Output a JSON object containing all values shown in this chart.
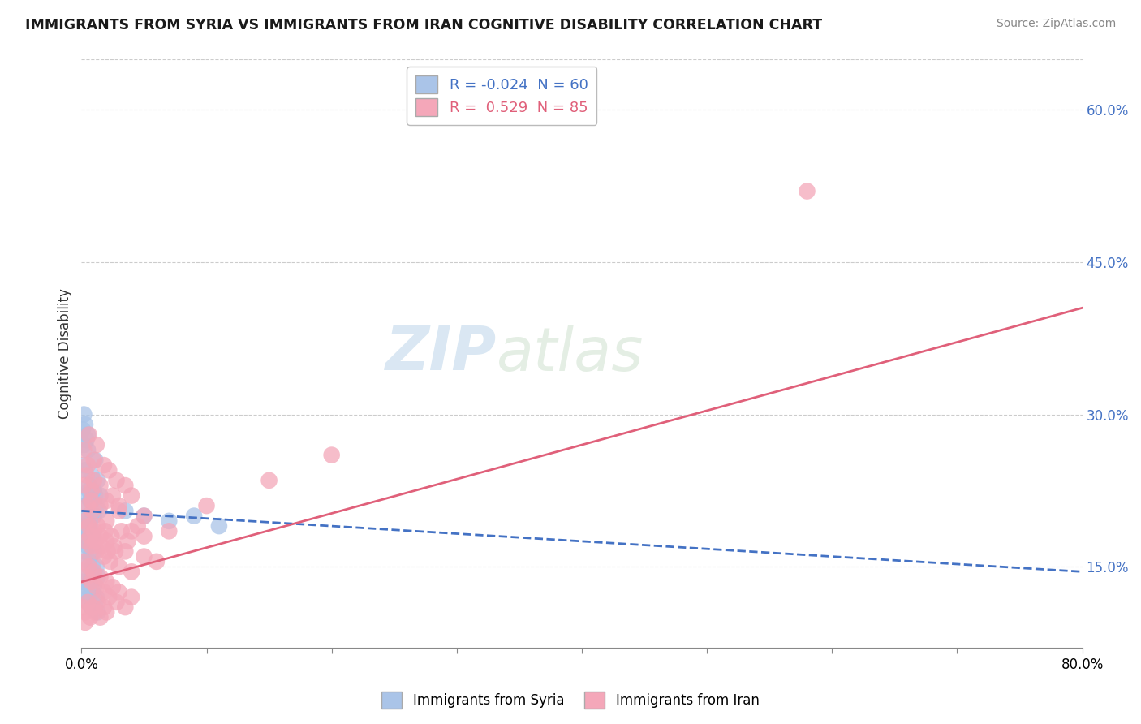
{
  "title": "IMMIGRANTS FROM SYRIA VS IMMIGRANTS FROM IRAN COGNITIVE DISABILITY CORRELATION CHART",
  "source": "Source: ZipAtlas.com",
  "ylabel": "Cognitive Disability",
  "series": [
    {
      "name": "Immigrants from Syria",
      "R": -0.024,
      "N": 60,
      "color": "#aac4e8",
      "line_color": "#4472c4",
      "line_style": "--",
      "points": [
        [
          0.1,
          25.0
        ],
        [
          0.2,
          27.0
        ],
        [
          0.3,
          24.5
        ],
        [
          0.4,
          22.0
        ],
        [
          0.5,
          26.5
        ],
        [
          0.6,
          23.0
        ],
        [
          0.7,
          21.5
        ],
        [
          0.8,
          24.0
        ],
        [
          0.9,
          20.0
        ],
        [
          1.0,
          22.5
        ],
        [
          1.1,
          25.5
        ],
        [
          1.2,
          21.0
        ],
        [
          1.3,
          23.5
        ],
        [
          1.4,
          20.5
        ],
        [
          1.5,
          22.0
        ],
        [
          0.2,
          19.5
        ],
        [
          0.3,
          21.0
        ],
        [
          0.4,
          18.5
        ],
        [
          0.5,
          20.0
        ],
        [
          0.6,
          22.5
        ],
        [
          0.7,
          19.0
        ],
        [
          0.8,
          21.5
        ],
        [
          0.9,
          18.0
        ],
        [
          1.0,
          20.0
        ],
        [
          1.1,
          22.0
        ],
        [
          0.1,
          17.5
        ],
        [
          0.2,
          19.0
        ],
        [
          0.3,
          16.5
        ],
        [
          0.4,
          18.0
        ],
        [
          0.5,
          17.0
        ],
        [
          0.6,
          15.5
        ],
        [
          0.7,
          16.0
        ],
        [
          0.8,
          14.5
        ],
        [
          0.9,
          15.0
        ],
        [
          1.0,
          16.5
        ],
        [
          1.2,
          15.0
        ],
        [
          1.3,
          14.0
        ],
        [
          0.1,
          13.5
        ],
        [
          0.2,
          12.5
        ],
        [
          0.3,
          14.5
        ],
        [
          0.4,
          13.0
        ],
        [
          0.5,
          11.5
        ],
        [
          0.6,
          12.0
        ],
        [
          0.7,
          13.5
        ],
        [
          0.8,
          11.0
        ],
        [
          0.9,
          12.5
        ],
        [
          1.0,
          13.0
        ],
        [
          1.1,
          11.5
        ],
        [
          1.2,
          12.0
        ],
        [
          1.3,
          10.5
        ],
        [
          0.1,
          28.5
        ],
        [
          0.2,
          30.0
        ],
        [
          0.3,
          29.0
        ],
        [
          0.4,
          27.5
        ],
        [
          0.5,
          28.0
        ],
        [
          3.5,
          20.5
        ],
        [
          5.0,
          20.0
        ],
        [
          7.0,
          19.5
        ],
        [
          9.0,
          20.0
        ],
        [
          11.0,
          19.0
        ]
      ]
    },
    {
      "name": "Immigrants from Iran",
      "R": 0.529,
      "N": 85,
      "color": "#f4a7b9",
      "line_color": "#e0607a",
      "line_style": "-",
      "points": [
        [
          0.2,
          26.5
        ],
        [
          0.4,
          24.0
        ],
        [
          0.6,
          28.0
        ],
        [
          0.8,
          22.5
        ],
        [
          1.0,
          25.5
        ],
        [
          1.2,
          27.0
        ],
        [
          1.5,
          23.0
        ],
        [
          1.8,
          25.0
        ],
        [
          2.0,
          21.5
        ],
        [
          2.2,
          24.5
        ],
        [
          2.5,
          22.0
        ],
        [
          2.8,
          23.5
        ],
        [
          3.0,
          21.0
        ],
        [
          3.5,
          23.0
        ],
        [
          4.0,
          22.0
        ],
        [
          0.3,
          19.5
        ],
        [
          0.5,
          21.0
        ],
        [
          0.7,
          18.0
        ],
        [
          0.9,
          20.5
        ],
        [
          1.1,
          17.5
        ],
        [
          1.3,
          19.0
        ],
        [
          1.6,
          17.0
        ],
        [
          1.9,
          18.5
        ],
        [
          2.1,
          16.5
        ],
        [
          2.4,
          18.0
        ],
        [
          2.7,
          16.5
        ],
        [
          3.2,
          18.5
        ],
        [
          3.7,
          17.5
        ],
        [
          4.5,
          19.0
        ],
        [
          5.0,
          18.0
        ],
        [
          0.2,
          15.5
        ],
        [
          0.4,
          14.0
        ],
        [
          0.6,
          15.0
        ],
        [
          0.8,
          13.5
        ],
        [
          1.0,
          14.5
        ],
        [
          1.2,
          13.0
        ],
        [
          1.5,
          14.0
        ],
        [
          1.8,
          12.5
        ],
        [
          2.0,
          13.5
        ],
        [
          2.2,
          12.0
        ],
        [
          2.5,
          13.0
        ],
        [
          2.8,
          11.5
        ],
        [
          3.0,
          12.5
        ],
        [
          3.5,
          11.0
        ],
        [
          4.0,
          12.0
        ],
        [
          0.1,
          11.0
        ],
        [
          0.3,
          10.5
        ],
        [
          0.5,
          11.5
        ],
        [
          0.7,
          10.0
        ],
        [
          0.9,
          11.0
        ],
        [
          1.1,
          10.5
        ],
        [
          1.3,
          11.5
        ],
        [
          1.5,
          10.0
        ],
        [
          1.8,
          11.0
        ],
        [
          2.0,
          10.5
        ],
        [
          0.4,
          17.5
        ],
        [
          0.6,
          19.0
        ],
        [
          0.8,
          17.0
        ],
        [
          1.0,
          18.5
        ],
        [
          1.2,
          16.5
        ],
        [
          1.5,
          18.0
        ],
        [
          1.8,
          16.0
        ],
        [
          2.0,
          17.5
        ],
        [
          2.3,
          15.5
        ],
        [
          2.6,
          17.0
        ],
        [
          3.0,
          15.0
        ],
        [
          3.5,
          16.5
        ],
        [
          4.0,
          14.5
        ],
        [
          5.0,
          16.0
        ],
        [
          6.0,
          15.5
        ],
        [
          0.2,
          23.0
        ],
        [
          0.5,
          25.0
        ],
        [
          0.8,
          21.5
        ],
        [
          1.0,
          23.5
        ],
        [
          1.5,
          21.0
        ],
        [
          2.0,
          19.5
        ],
        [
          3.0,
          20.5
        ],
        [
          4.0,
          18.5
        ],
        [
          5.0,
          20.0
        ],
        [
          7.0,
          18.5
        ],
        [
          10.0,
          21.0
        ],
        [
          15.0,
          23.5
        ],
        [
          20.0,
          26.0
        ],
        [
          58.0,
          52.0
        ],
        [
          0.3,
          9.5
        ]
      ]
    }
  ],
  "xlim": [
    0,
    80
  ],
  "ylim": [
    7,
    65
  ],
  "x_ticks": [
    0,
    10,
    20,
    30,
    40,
    50,
    60,
    70,
    80
  ],
  "x_tick_labels": [
    "0.0%",
    "",
    "",
    "",
    "",
    "",
    "",
    "",
    "80.0%"
  ],
  "y_ticks_right": [
    15,
    30,
    45,
    60
  ],
  "y_tick_labels_right": [
    "15.0%",
    "30.0%",
    "45.0%",
    "60.0%"
  ],
  "trend_line_syria": {
    "x0": 0,
    "y0": 20.5,
    "x1": 80,
    "y1": 14.5
  },
  "trend_line_iran": {
    "x0": 0,
    "y0": 13.5,
    "x1": 80,
    "y1": 40.5
  },
  "watermark_zip": "ZIP",
  "watermark_atlas": "atlas",
  "background_color": "#ffffff",
  "grid_color": "#cccccc",
  "right_tick_color": "#4472c4"
}
